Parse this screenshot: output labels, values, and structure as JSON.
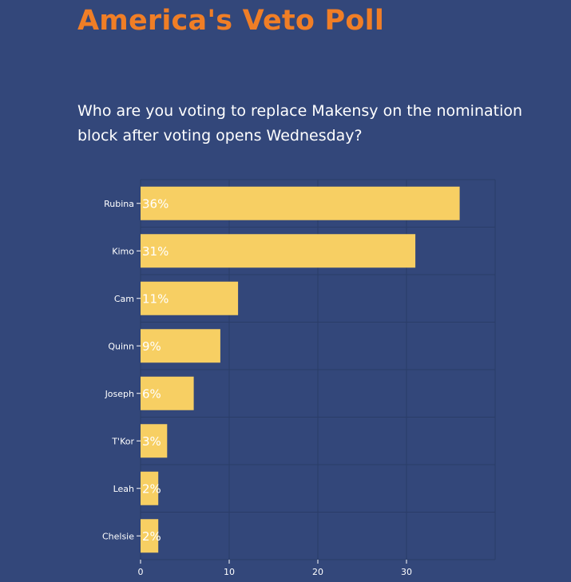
{
  "header": {
    "title": "America's Veto Poll",
    "question": "Who are you voting to replace Makensy on the nomination block after voting opens Wednesday?"
  },
  "colors": {
    "background": "#33477a",
    "title": "#f07e26",
    "bar": "#f7cf63",
    "grid": "#2a3c68",
    "text": "#ffffff"
  },
  "chart_data": {
    "type": "bar",
    "orientation": "horizontal",
    "title": "America's Veto Poll",
    "subtitle": "Who are you voting to replace Makensy on the nomination block after voting opens Wednesday?",
    "categories": [
      "Rubina",
      "Kimo",
      "Cam",
      "Quinn",
      "Joseph",
      "T'Kor",
      "Leah",
      "Chelsie"
    ],
    "values": [
      36,
      31,
      11,
      9,
      6,
      3,
      2,
      2
    ],
    "data_labels": [
      "36%",
      "31%",
      "11%",
      "9%",
      "6%",
      "3%",
      "2%",
      "2%"
    ],
    "xlabel": "",
    "ylabel": "",
    "xlim": [
      0,
      40
    ],
    "xticks": [
      0,
      10,
      20,
      30
    ],
    "grid": true
  }
}
